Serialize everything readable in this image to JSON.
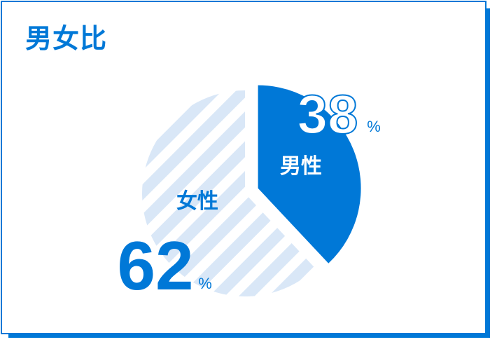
{
  "title": "男女比",
  "chart_data": {
    "type": "pie",
    "categories": [
      "男性",
      "女性"
    ],
    "values": [
      38,
      62
    ],
    "unit": "%",
    "colors": {
      "male": "#0078d7",
      "female_stripe": "#d9e7f7",
      "male_outline_text": "#0078d7",
      "female_text": "#0078d7"
    }
  }
}
